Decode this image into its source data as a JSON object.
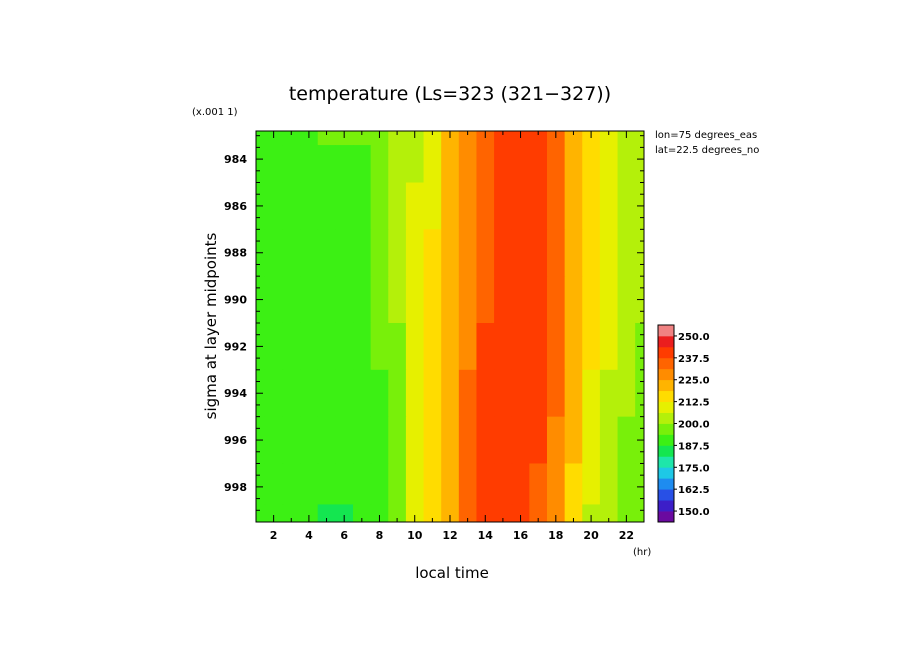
{
  "chart_data": {
    "type": "heatmap",
    "title": "temperature (Ls=323 (321−327))",
    "xlabel": "local time",
    "x_unit": "(hr)",
    "ylabel": "sigma at layer midpoints",
    "y_scale_note": "(x.001 1)",
    "annotations": [
      "lon=75 degrees_eas",
      "lat=22.5 degrees_no"
    ],
    "xlim": [
      1,
      23
    ],
    "ylim": [
      999.5,
      982.8
    ],
    "x_ticks": [
      2,
      4,
      6,
      8,
      10,
      12,
      14,
      16,
      18,
      20,
      22
    ],
    "y_ticks": [
      984,
      986,
      988,
      990,
      992,
      994,
      996,
      998
    ],
    "colorbar": {
      "min": 143.75,
      "max": 256.25,
      "step": 6.25,
      "tick_labels": [
        "150.0",
        "162.5",
        "175.0",
        "187.5",
        "200.0",
        "212.5",
        "225.0",
        "237.5",
        "250.0"
      ],
      "colors": [
        "#6a0aa0",
        "#3c1ec8",
        "#2850e6",
        "#1e8cf0",
        "#1ec8e6",
        "#1ee6aa",
        "#14e650",
        "#3cf014",
        "#78f00a",
        "#b4f00a",
        "#e6f000",
        "#ffdc00",
        "#ffb400",
        "#ff8c00",
        "#ff6400",
        "#ff3c00",
        "#eb1e1e",
        "#f08282"
      ]
    },
    "x": [
      1,
      2,
      3,
      4,
      5,
      6,
      7,
      8,
      9,
      10,
      11,
      12,
      13,
      14,
      15,
      16,
      17,
      18,
      19,
      20,
      21,
      22,
      23
    ],
    "y": [
      982.8,
      984,
      986,
      988,
      990,
      992,
      994,
      996,
      998,
      999.5
    ],
    "profiles": {
      "top": [
        192,
        192.5,
        193,
        193.5,
        194,
        194,
        194,
        195,
        200,
        206,
        212,
        222,
        230,
        237,
        239,
        240,
        239,
        233,
        224,
        216,
        210,
        206,
        204
      ],
      "mid": [
        191,
        191.5,
        192,
        192,
        192,
        192,
        192,
        194,
        200,
        207,
        213,
        223,
        231,
        237.5,
        239.5,
        240,
        239.5,
        234,
        225,
        215,
        208,
        203,
        200
      ],
      "bottom": [
        189,
        188.5,
        188,
        187.5,
        187,
        187,
        188,
        192,
        199,
        207,
        214,
        224,
        232,
        237.5,
        239.5,
        240,
        237,
        228,
        216,
        206,
        200,
        197,
        195
      ]
    }
  }
}
